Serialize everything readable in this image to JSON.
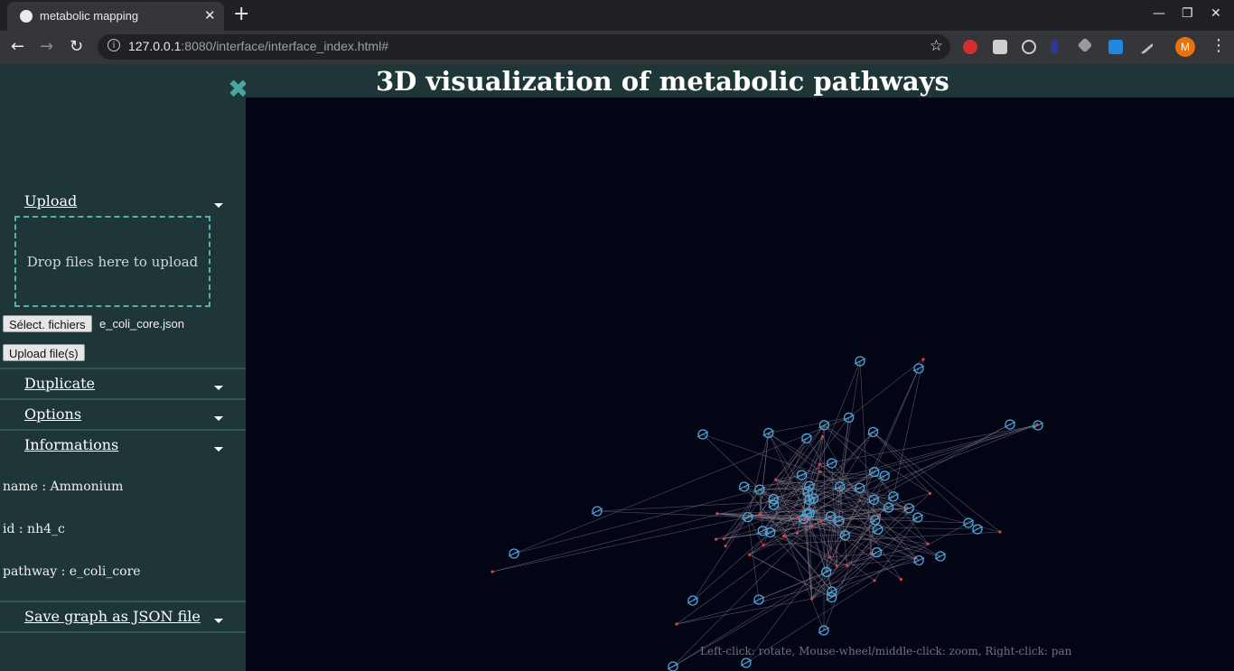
{
  "browser": {
    "tab_title": "metabolic mapping",
    "tab_close": "✕",
    "new_tab": "+",
    "url_host": "127.0.0.1",
    "url_rest": ":8080/interface/interface_index.html#",
    "profile_initial": "M",
    "extensions": [
      "adblock-plus-icon",
      "document-icon",
      "headset-icon",
      "pen-icon",
      "tag-icon",
      "s-icon",
      "brush-icon"
    ]
  },
  "page": {
    "title": "3D visualization of metabolic pathways",
    "sidebar": {
      "upload": {
        "label": "Upload",
        "dropzone_text": "Drop files here to upload",
        "select_button": "Sélect. fichiers",
        "selected_file": "e_coli_core.json",
        "upload_button": "Upload file(s)"
      },
      "duplicate_label": "Duplicate",
      "options_label": "Options",
      "informations": {
        "label": "Informations",
        "name_line": "name : Ammonium",
        "id_line": "id : nh4_c",
        "pathway_line": "pathway : e_coli_core"
      },
      "save_label": "Save graph as JSON file"
    },
    "viz_hint": "Left-click: rotate, Mouse-wheel/middle-click: zoom, Right-click: pan",
    "colors": {
      "node_reaction": "#4aa7d8",
      "node_metabolite": "#e04040",
      "edge": "#9a8fa0",
      "background": "#030515"
    }
  }
}
